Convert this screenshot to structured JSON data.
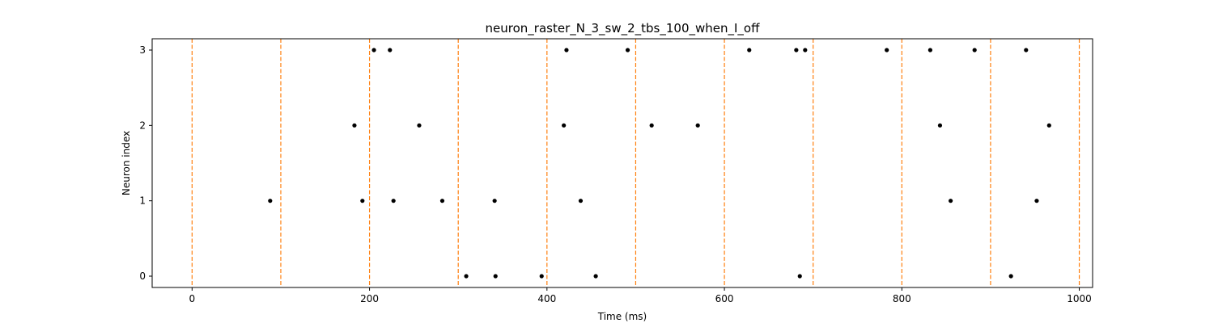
{
  "chart_data": {
    "type": "scatter",
    "title": "neuron_raster_N_3_sw_2_tbs_100_when_I_off",
    "xlabel": "Time (ms)",
    "ylabel": "Neuron index",
    "xlim": [
      -45,
      1015
    ],
    "ylim": [
      -0.15,
      3.15
    ],
    "x_ticks": [
      0,
      200,
      400,
      600,
      800,
      1000
    ],
    "y_ticks": [
      0,
      1,
      2,
      3
    ],
    "grid": false,
    "marker_color": "#000000",
    "vline_color": "#ff7f0e",
    "vline_style": "dashed",
    "vlines_x": [
      0,
      100,
      200,
      300,
      400,
      500,
      600,
      700,
      800,
      900,
      1000
    ],
    "series": [
      {
        "neuron": 0,
        "x": [
          309,
          342,
          394,
          455,
          685,
          923
        ]
      },
      {
        "neuron": 1,
        "x": [
          88,
          192,
          227,
          282,
          341,
          438,
          855,
          952
        ]
      },
      {
        "neuron": 2,
        "x": [
          183,
          256,
          419,
          518,
          570,
          843,
          966
        ]
      },
      {
        "neuron": 3,
        "x": [
          205,
          223,
          422,
          491,
          628,
          681,
          691,
          783,
          832,
          882,
          940
        ]
      }
    ]
  }
}
